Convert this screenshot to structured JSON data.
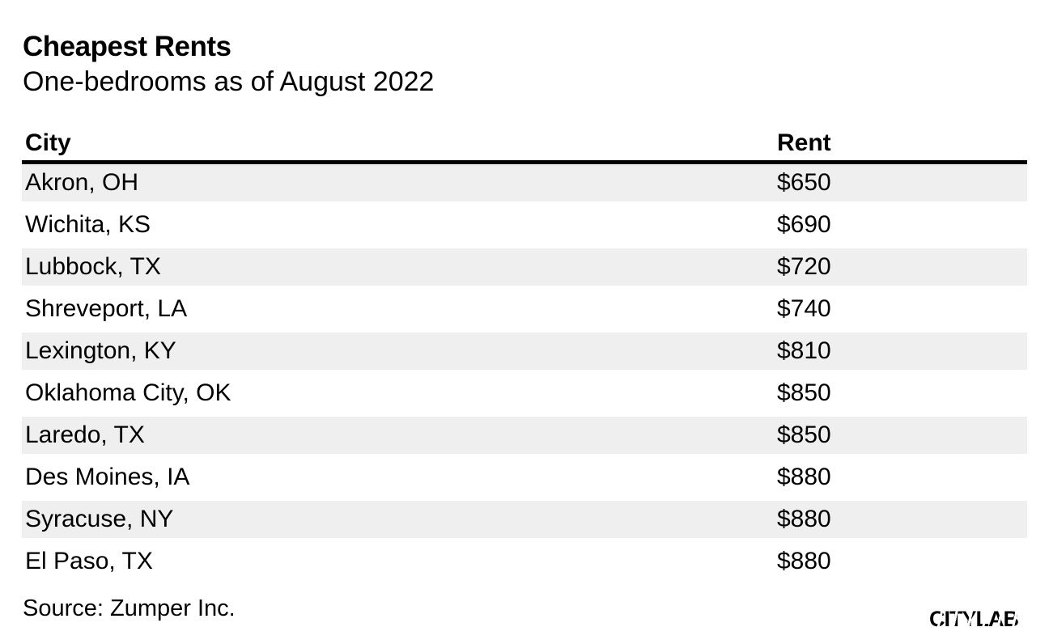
{
  "header": {
    "title": "Cheapest Rents",
    "subtitle": "One-bedrooms as of August 2022"
  },
  "table": {
    "columns": {
      "city": "City",
      "rent": "Rent"
    },
    "rows": [
      {
        "city": "Akron, OH",
        "rent": "$650"
      },
      {
        "city": "Wichita, KS",
        "rent": "$690"
      },
      {
        "city": "Lubbock, TX",
        "rent": "$720"
      },
      {
        "city": "Shreveport, LA",
        "rent": "$740"
      },
      {
        "city": "Lexington, KY",
        "rent": "$810"
      },
      {
        "city": "Oklahoma City, OK",
        "rent": "$850"
      },
      {
        "city": "Laredo, TX",
        "rent": "$850"
      },
      {
        "city": "Des Moines, IA",
        "rent": "$880"
      },
      {
        "city": "Syracuse, NY",
        "rent": "$880"
      },
      {
        "city": "El Paso, TX",
        "rent": "$880"
      }
    ]
  },
  "footer": {
    "source": "Source: Zumper Inc.",
    "logo": "CITYLAB"
  },
  "colors": {
    "background": "#ffffff",
    "text": "#000000",
    "row_stripe": "#efefef",
    "rule": "#000000"
  },
  "chart_data": {
    "type": "table",
    "title": "Cheapest Rents",
    "subtitle": "One-bedrooms as of August 2022",
    "columns": [
      "City",
      "Rent"
    ],
    "categories": [
      "Akron, OH",
      "Wichita, KS",
      "Lubbock, TX",
      "Shreveport, LA",
      "Lexington, KY",
      "Oklahoma City, OK",
      "Laredo, TX",
      "Des Moines, IA",
      "Syracuse, NY",
      "El Paso, TX"
    ],
    "values": [
      650,
      690,
      720,
      740,
      810,
      850,
      850,
      880,
      880,
      880
    ],
    "value_prefix": "$",
    "source": "Zumper Inc."
  }
}
